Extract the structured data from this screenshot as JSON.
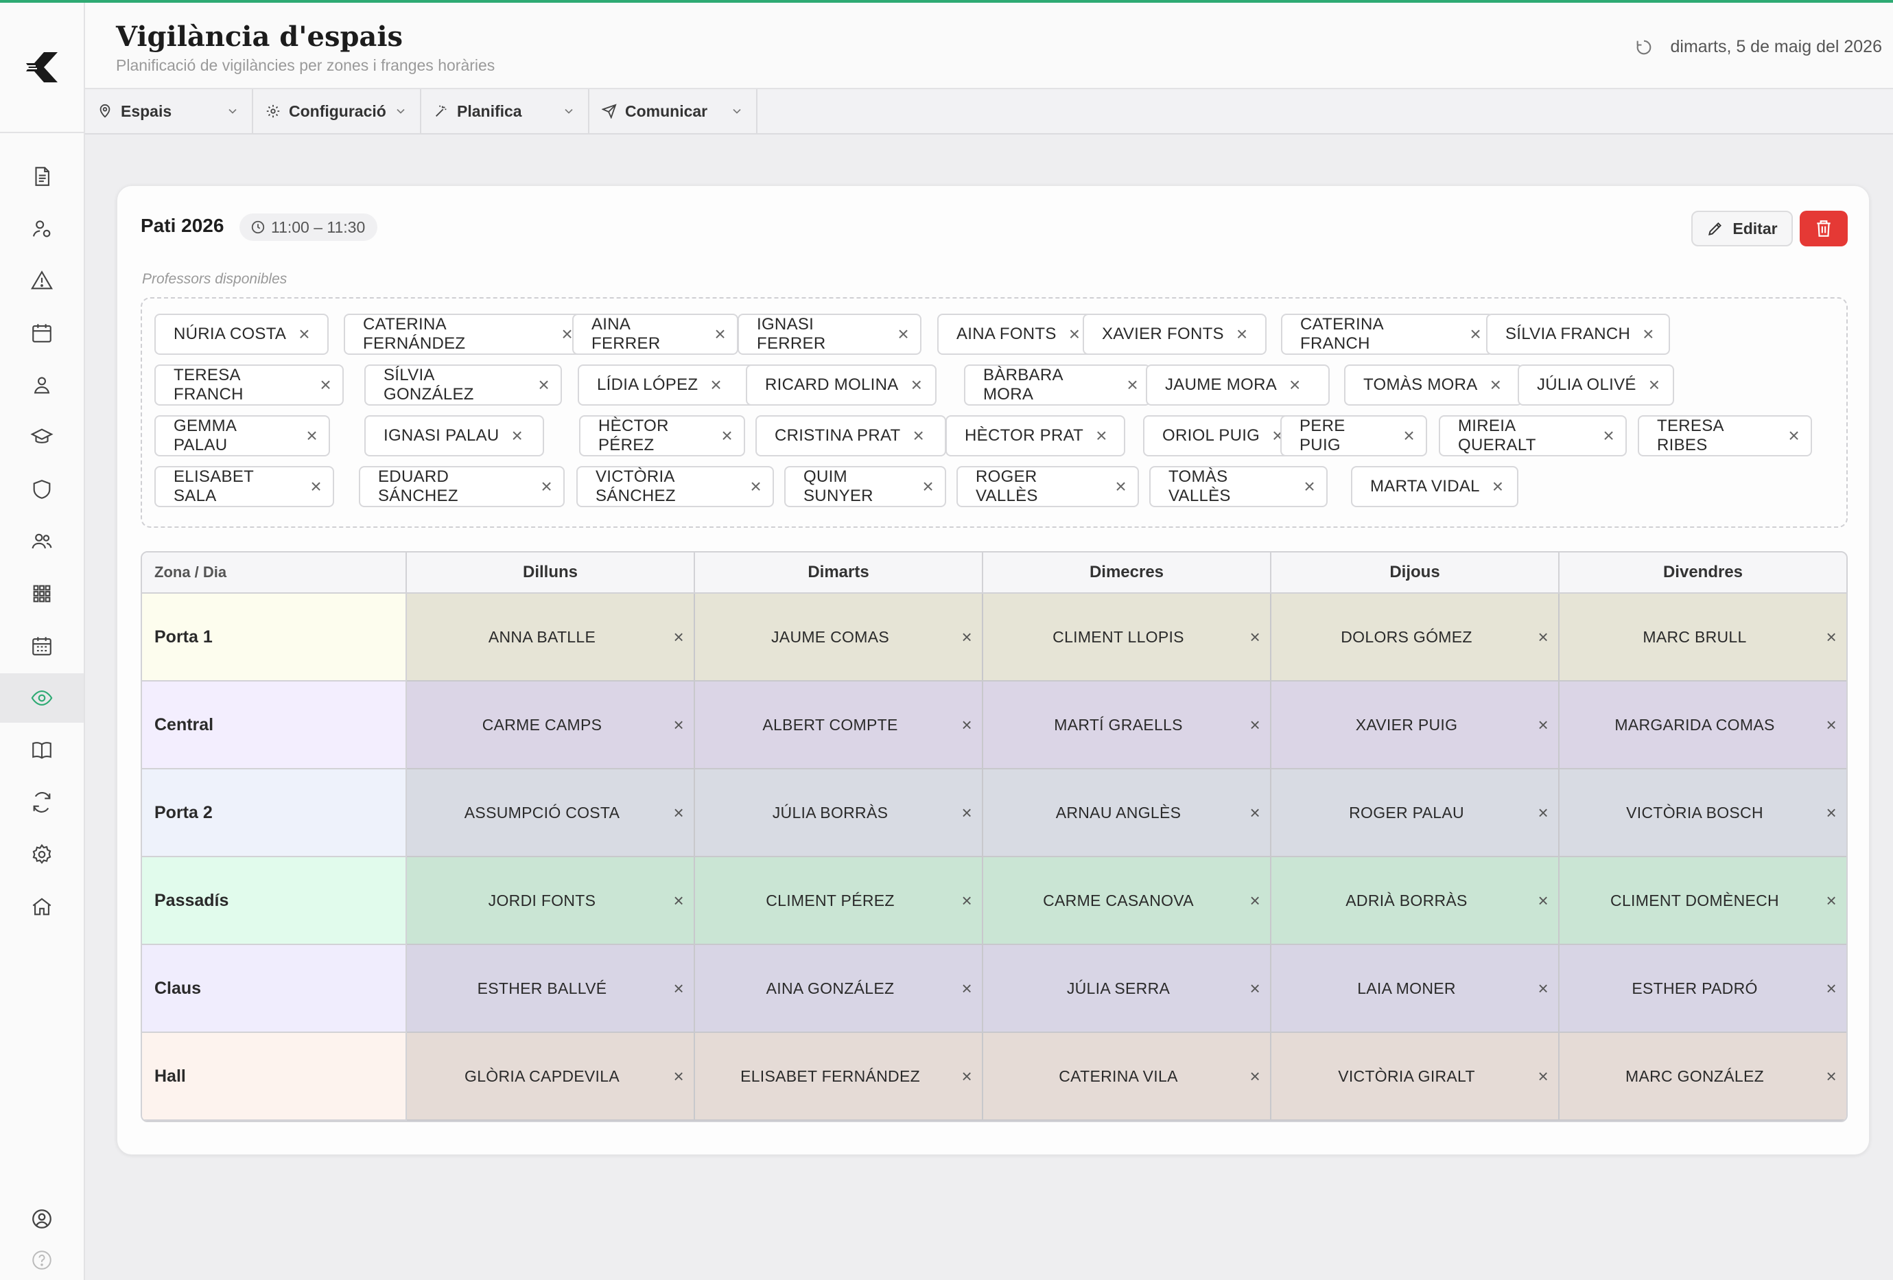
{
  "app": {
    "title": "Vigilància d'espais",
    "subtitle": "Planificació de vigilàncies per zones i franges horàries",
    "date": "dimarts, 5 de maig del 2026",
    "accent_color": "#2eaa73"
  },
  "menu": {
    "items": [
      {
        "label": "Espais",
        "icon": "pin-icon"
      },
      {
        "label": "Configuració",
        "icon": "gear-icon"
      },
      {
        "label": "Planifica",
        "icon": "magic-wand-icon"
      },
      {
        "label": "Comunicar",
        "icon": "send-icon"
      }
    ]
  },
  "sidebar": {
    "icons": [
      "document-icon",
      "user-settings-icon",
      "warning-icon",
      "calendar-icon",
      "user-icon",
      "graduation-cap-icon",
      "shield-icon",
      "users-icon",
      "grid-icon",
      "calendar-grid-icon",
      "eye-icon",
      "book-icon",
      "refresh-icon",
      "settings-icon",
      "home-icon"
    ],
    "active": "eye-icon",
    "bottom_icons": [
      "account-icon",
      "help-icon"
    ]
  },
  "card": {
    "title": "Pati 2026",
    "time": "11:00 – 11:30",
    "edit_label": "Editar",
    "delete_color": "#e53935",
    "available_label": "Professors disponibles",
    "available": [
      "NÚRIA COSTA",
      "CATERINA FERNÁNDEZ",
      "AINA FERRER",
      "IGNASI FERRER",
      "AINA FONTS",
      "XAVIER FONTS",
      "CATERINA FRANCH",
      "SÍLVIA FRANCH",
      "TERESA FRANCH",
      "SÍLVIA GONZÁLEZ",
      "LÍDIA LÓPEZ",
      "RICARD MOLINA",
      "BÀRBARA MORA",
      "JAUME MORA",
      "TOMÀS MORA",
      "JÚLIA OLIVÉ",
      "GEMMA PALAU",
      "IGNASI PALAU",
      "HÈCTOR PÉREZ",
      "CRISTINA PRAT",
      "HÈCTOR PRAT",
      "ORIOL PUIG",
      "PERE PUIG",
      "MIREIA QUERALT",
      "TERESA RIBES",
      "ELISABET SALA",
      "EDUARD SÁNCHEZ",
      "VICTÒRIA SÁNCHEZ",
      "QUIM SUNYER",
      "ROGER VALLÈS",
      "TOMÀS VALLÈS",
      "MARTA VIDAL"
    ]
  },
  "table": {
    "corner": "Zona / Dia",
    "days": [
      "Dilluns",
      "Dimarts",
      "Dimecres",
      "Dijous",
      "Divendres"
    ],
    "rows": [
      {
        "zone": "Porta 1",
        "zone_color": "#fdfdee",
        "cell_color": "#e6e4d6",
        "cells": [
          "ANNA BATLLE",
          "JAUME COMAS",
          "CLIMENT LLOPIS",
          "DOLORS GÓMEZ",
          "MARC BRULL"
        ]
      },
      {
        "zone": "Central",
        "zone_color": "#f3eefe",
        "cell_color": "#dbd5e6",
        "cells": [
          "CARME CAMPS",
          "ALBERT COMPTE",
          "MARTÍ GRAELLS",
          "XAVIER PUIG",
          "MARGARIDA COMAS"
        ]
      },
      {
        "zone": "Porta 2",
        "zone_color": "#eef2fb",
        "cell_color": "#d8dbe3",
        "cells": [
          "ASSUMPCIÓ COSTA",
          "JÚLIA BORRÀS",
          "ARNAU ANGLÈS",
          "ROGER PALAU",
          "VICTÒRIA BOSCH"
        ]
      },
      {
        "zone": "Passadís",
        "zone_color": "#e1fbec",
        "cell_color": "#cae5d4",
        "cells": [
          "JORDI FONTS",
          "CLIMENT PÉREZ",
          "CARME CASANOVA",
          "ADRIÀ BORRÀS",
          "CLIMENT DOMÈNECH"
        ]
      },
      {
        "zone": "Claus",
        "zone_color": "#f0edfd",
        "cell_color": "#d8d5e5",
        "cells": [
          "ESTHER BALLVÉ",
          "AINA GONZÁLEZ",
          "JÚLIA SERRA",
          "LAIA MONER",
          "ESTHER PADRÓ"
        ]
      },
      {
        "zone": "Hall",
        "zone_color": "#fdf3ee",
        "cell_color": "#e5dbd6",
        "cells": [
          "GLÒRIA CAPDEVILA",
          "ELISABET FERNÁNDEZ",
          "CATERINA VILA",
          "VICTÒRIA GIRALT",
          "MARC GONZÁLEZ"
        ]
      }
    ]
  }
}
